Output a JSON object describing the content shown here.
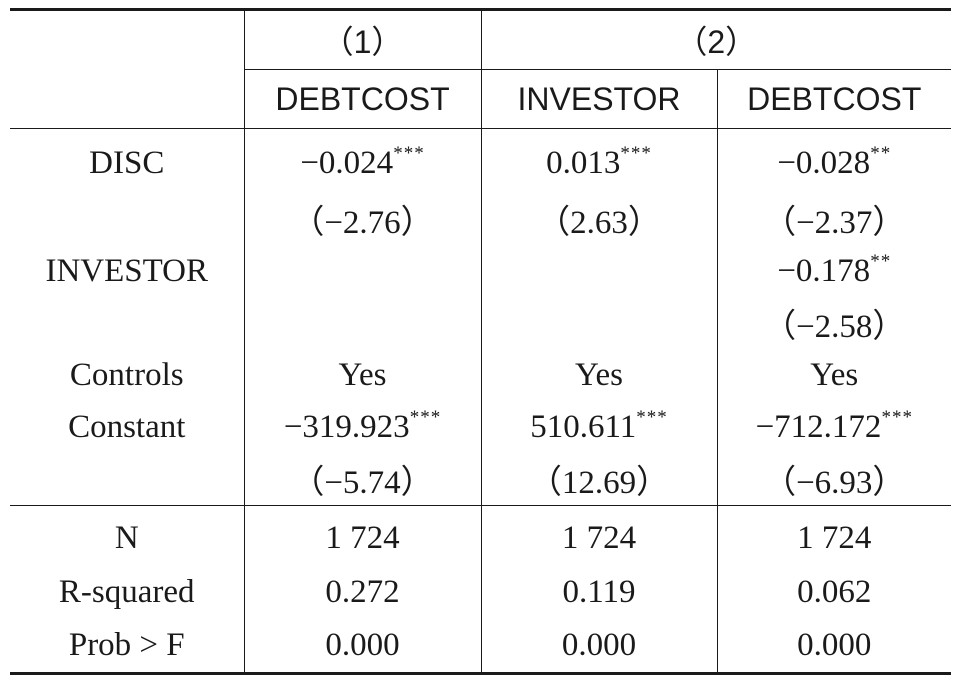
{
  "table": {
    "header": {
      "group1": "（1）",
      "group2": "（2）",
      "col1": "DEBTCOST",
      "col2": "INVESTOR",
      "col3": "DEBTCOST"
    },
    "rows": {
      "disc": {
        "label": "DISC",
        "c1": "−0.024",
        "c1_stars": "***",
        "c2": "0.013",
        "c2_stars": "***",
        "c3": "−0.028",
        "c3_stars": "**",
        "t1": "（−2.76）",
        "t2": "（2.63）",
        "t3": "（−2.37）"
      },
      "investor": {
        "label": "INVESTOR",
        "c3": "−0.178",
        "c3_stars": "**",
        "t3": "（−2.58）"
      },
      "controls": {
        "label": "Controls",
        "c1": "Yes",
        "c2": "Yes",
        "c3": "Yes"
      },
      "constant": {
        "label": "Constant",
        "c1": "−319.923",
        "c1_stars": "***",
        "c2": "510.611",
        "c2_stars": "***",
        "c3": "−712.172",
        "c3_stars": "***",
        "t1": "（−5.74）",
        "t2": "（12.69）",
        "t3": "（−6.93）"
      },
      "n": {
        "label": "N",
        "c1": "1 724",
        "c2": "1 724",
        "c3": "1 724"
      },
      "rsquared": {
        "label": "R-squared",
        "c1": "0.272",
        "c2": "0.119",
        "c3": "0.062"
      },
      "probf": {
        "label": "Prob > F",
        "c1": "0.000",
        "c2": "0.000",
        "c3": "0.000"
      }
    }
  }
}
